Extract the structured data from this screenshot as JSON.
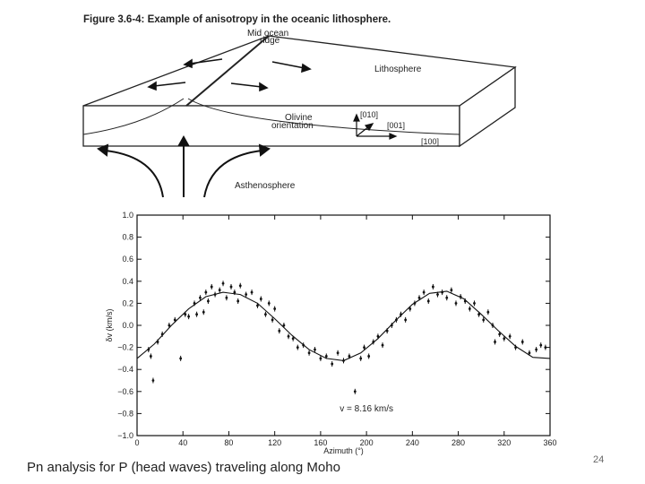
{
  "figure": {
    "title": "Figure 3.6-4: Example of anisotropy in the oceanic lithosphere.",
    "ridge_label_1": "Mid ocean",
    "ridge_label_2": "ridge",
    "lithosphere_label": "Lithosphere",
    "olivine_label_1": "Olivine",
    "olivine_label_2": "orientation",
    "axis_010": "[010]",
    "axis_001": "[001]",
    "axis_100": "[100]",
    "asthenosphere_label": "Asthenosphere"
  },
  "chart_data": {
    "type": "scatter",
    "title": "",
    "xlabel": "Azimuth (°)",
    "ylabel": "δv (km/s)",
    "xlim": [
      0,
      360
    ],
    "ylim": [
      -1.0,
      1.0
    ],
    "x_ticks": [
      "0",
      "40",
      "80",
      "120",
      "160",
      "200",
      "240",
      "280",
      "320",
      "360"
    ],
    "y_ticks": [
      "1.0",
      "0.8",
      "0.6",
      "0.4",
      "0.2",
      "0.0",
      "−0.2",
      "−0.4",
      "−0.6",
      "−0.8",
      "−1.0"
    ],
    "annotation": "v = 8.16 km/s",
    "fit_curve": {
      "name": "",
      "x": [
        0,
        15,
        30,
        45,
        60,
        75,
        90,
        105,
        120,
        135,
        150,
        165,
        180,
        195,
        210,
        225,
        240,
        255,
        270,
        285,
        300,
        315,
        330,
        345,
        360
      ],
      "y": [
        -0.3,
        -0.17,
        0.0,
        0.15,
        0.26,
        0.3,
        0.28,
        0.2,
        0.06,
        -0.09,
        -0.22,
        -0.3,
        -0.32,
        -0.25,
        -0.12,
        0.04,
        0.19,
        0.29,
        0.31,
        0.24,
        0.1,
        -0.05,
        -0.19,
        -0.29,
        -0.3
      ]
    },
    "points": [
      {
        "x": 10,
        "y": -0.22
      },
      {
        "x": 12,
        "y": -0.28
      },
      {
        "x": 14,
        "y": -0.5
      },
      {
        "x": 18,
        "y": -0.15
      },
      {
        "x": 22,
        "y": -0.08
      },
      {
        "x": 28,
        "y": 0.0
      },
      {
        "x": 33,
        "y": 0.05
      },
      {
        "x": 38,
        "y": -0.3
      },
      {
        "x": 42,
        "y": 0.1
      },
      {
        "x": 45,
        "y": 0.08
      },
      {
        "x": 50,
        "y": 0.2
      },
      {
        "x": 52,
        "y": 0.1
      },
      {
        "x": 55,
        "y": 0.25
      },
      {
        "x": 58,
        "y": 0.12
      },
      {
        "x": 60,
        "y": 0.3
      },
      {
        "x": 62,
        "y": 0.22
      },
      {
        "x": 65,
        "y": 0.35
      },
      {
        "x": 68,
        "y": 0.28
      },
      {
        "x": 72,
        "y": 0.32
      },
      {
        "x": 75,
        "y": 0.38
      },
      {
        "x": 78,
        "y": 0.25
      },
      {
        "x": 82,
        "y": 0.35
      },
      {
        "x": 85,
        "y": 0.3
      },
      {
        "x": 88,
        "y": 0.22
      },
      {
        "x": 90,
        "y": 0.36
      },
      {
        "x": 95,
        "y": 0.28
      },
      {
        "x": 100,
        "y": 0.3
      },
      {
        "x": 105,
        "y": 0.18
      },
      {
        "x": 108,
        "y": 0.24
      },
      {
        "x": 112,
        "y": 0.1
      },
      {
        "x": 115,
        "y": 0.2
      },
      {
        "x": 118,
        "y": 0.05
      },
      {
        "x": 120,
        "y": 0.15
      },
      {
        "x": 124,
        "y": -0.05
      },
      {
        "x": 128,
        "y": 0.0
      },
      {
        "x": 132,
        "y": -0.1
      },
      {
        "x": 136,
        "y": -0.12
      },
      {
        "x": 140,
        "y": -0.2
      },
      {
        "x": 145,
        "y": -0.18
      },
      {
        "x": 150,
        "y": -0.25
      },
      {
        "x": 155,
        "y": -0.22
      },
      {
        "x": 160,
        "y": -0.3
      },
      {
        "x": 165,
        "y": -0.28
      },
      {
        "x": 170,
        "y": -0.35
      },
      {
        "x": 175,
        "y": -0.25
      },
      {
        "x": 180,
        "y": -0.32
      },
      {
        "x": 185,
        "y": -0.28
      },
      {
        "x": 190,
        "y": -0.6
      },
      {
        "x": 195,
        "y": -0.3
      },
      {
        "x": 198,
        "y": -0.2
      },
      {
        "x": 202,
        "y": -0.28
      },
      {
        "x": 206,
        "y": -0.15
      },
      {
        "x": 210,
        "y": -0.1
      },
      {
        "x": 214,
        "y": -0.18
      },
      {
        "x": 218,
        "y": -0.05
      },
      {
        "x": 222,
        "y": 0.0
      },
      {
        "x": 226,
        "y": 0.05
      },
      {
        "x": 230,
        "y": 0.1
      },
      {
        "x": 234,
        "y": 0.05
      },
      {
        "x": 238,
        "y": 0.15
      },
      {
        "x": 242,
        "y": 0.2
      },
      {
        "x": 246,
        "y": 0.25
      },
      {
        "x": 250,
        "y": 0.3
      },
      {
        "x": 254,
        "y": 0.22
      },
      {
        "x": 258,
        "y": 0.35
      },
      {
        "x": 262,
        "y": 0.28
      },
      {
        "x": 266,
        "y": 0.3
      },
      {
        "x": 270,
        "y": 0.25
      },
      {
        "x": 274,
        "y": 0.32
      },
      {
        "x": 278,
        "y": 0.2
      },
      {
        "x": 282,
        "y": 0.26
      },
      {
        "x": 286,
        "y": 0.22
      },
      {
        "x": 290,
        "y": 0.15
      },
      {
        "x": 294,
        "y": 0.2
      },
      {
        "x": 298,
        "y": 0.1
      },
      {
        "x": 302,
        "y": 0.05
      },
      {
        "x": 306,
        "y": 0.12
      },
      {
        "x": 310,
        "y": 0.0
      },
      {
        "x": 312,
        "y": -0.15
      },
      {
        "x": 316,
        "y": -0.08
      },
      {
        "x": 320,
        "y": -0.12
      },
      {
        "x": 325,
        "y": -0.1
      },
      {
        "x": 330,
        "y": -0.2
      },
      {
        "x": 336,
        "y": -0.15
      },
      {
        "x": 342,
        "y": -0.25
      },
      {
        "x": 348,
        "y": -0.22
      },
      {
        "x": 352,
        "y": -0.18
      },
      {
        "x": 356,
        "y": -0.2
      }
    ]
  },
  "caption": "Pn analysis for P (head waves) traveling along Moho",
  "page_number": "24"
}
